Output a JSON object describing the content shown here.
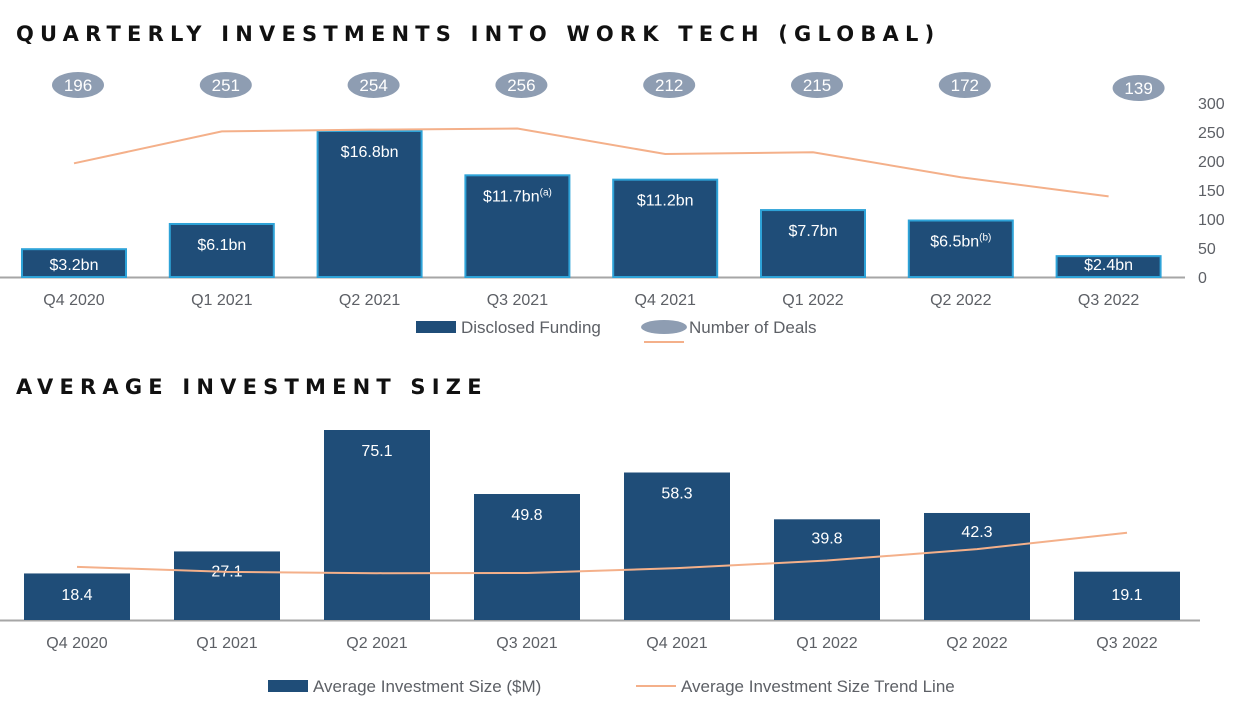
{
  "chart_data": [
    {
      "type": "bar",
      "title": "QUARTERLY INVESTMENTS INTO WORK TECH (GLOBAL)",
      "categories": [
        "Q4 2020",
        "Q1 2021",
        "Q2 2021",
        "Q3 2021",
        "Q4 2021",
        "Q1 2022",
        "Q2 2022",
        "Q3 2022"
      ],
      "series": [
        {
          "name": "Disclosed Funding",
          "kind": "bar",
          "unit": "$bn",
          "values": [
            3.2,
            6.1,
            16.8,
            11.7,
            11.2,
            7.7,
            6.5,
            2.4
          ],
          "labels": [
            "$3.2bn",
            "$6.1bn",
            "$16.8bn",
            "$11.7bn",
            "$11.2bn",
            "$7.7bn",
            "$6.5bn",
            "$2.4bn"
          ],
          "label_superscripts": [
            "",
            "",
            "",
            "(a)",
            "",
            "",
            "(b)",
            ""
          ]
        },
        {
          "name": "Number of Deals",
          "kind": "line",
          "axis": "right",
          "values": [
            196,
            251,
            254,
            256,
            212,
            215,
            172,
            139
          ]
        }
      ],
      "y2lim": [
        0,
        300
      ],
      "y2ticks": [
        "300",
        "250",
        "200",
        "150",
        "100",
        "50",
        "0"
      ],
      "legend": [
        "Disclosed Funding",
        "Number of Deals"
      ],
      "legend_position": "bottom-center",
      "colors": {
        "bar": "#1f4d78",
        "bar_edge": "#2ea3d8",
        "deal_badge": "#8e9db2",
        "line": "#f4b08a",
        "axis": "#a6a6a6"
      }
    },
    {
      "type": "bar",
      "title": "AVERAGE INVESTMENT SIZE",
      "categories": [
        "Q4 2020",
        "Q1 2021",
        "Q2 2021",
        "Q3 2021",
        "Q4 2021",
        "Q1 2022",
        "Q2 2022",
        "Q3 2022"
      ],
      "series": [
        {
          "name": "Average Investment Size ($M)",
          "kind": "bar",
          "values": [
            18.4,
            27.1,
            75.1,
            49.8,
            58.3,
            39.8,
            42.3,
            19.1
          ],
          "labels": [
            "18.4",
            "27.1",
            "75.1",
            "49.8",
            "58.3",
            "39.8",
            "42.3",
            "19.1"
          ]
        },
        {
          "name": "Average Investment Size Trend Line",
          "kind": "line",
          "values": [
            21.0,
            19.0,
            18.5,
            18.6,
            20.5,
            23.5,
            28.0,
            34.5
          ]
        }
      ],
      "ylim": [
        0,
        80
      ],
      "legend": [
        "Average Investment Size ($M)",
        "Average Investment Size Trend Line"
      ],
      "legend_position": "bottom-center",
      "colors": {
        "bar": "#1f4d78",
        "line": "#f4b08a",
        "axis": "#a6a6a6"
      }
    }
  ]
}
